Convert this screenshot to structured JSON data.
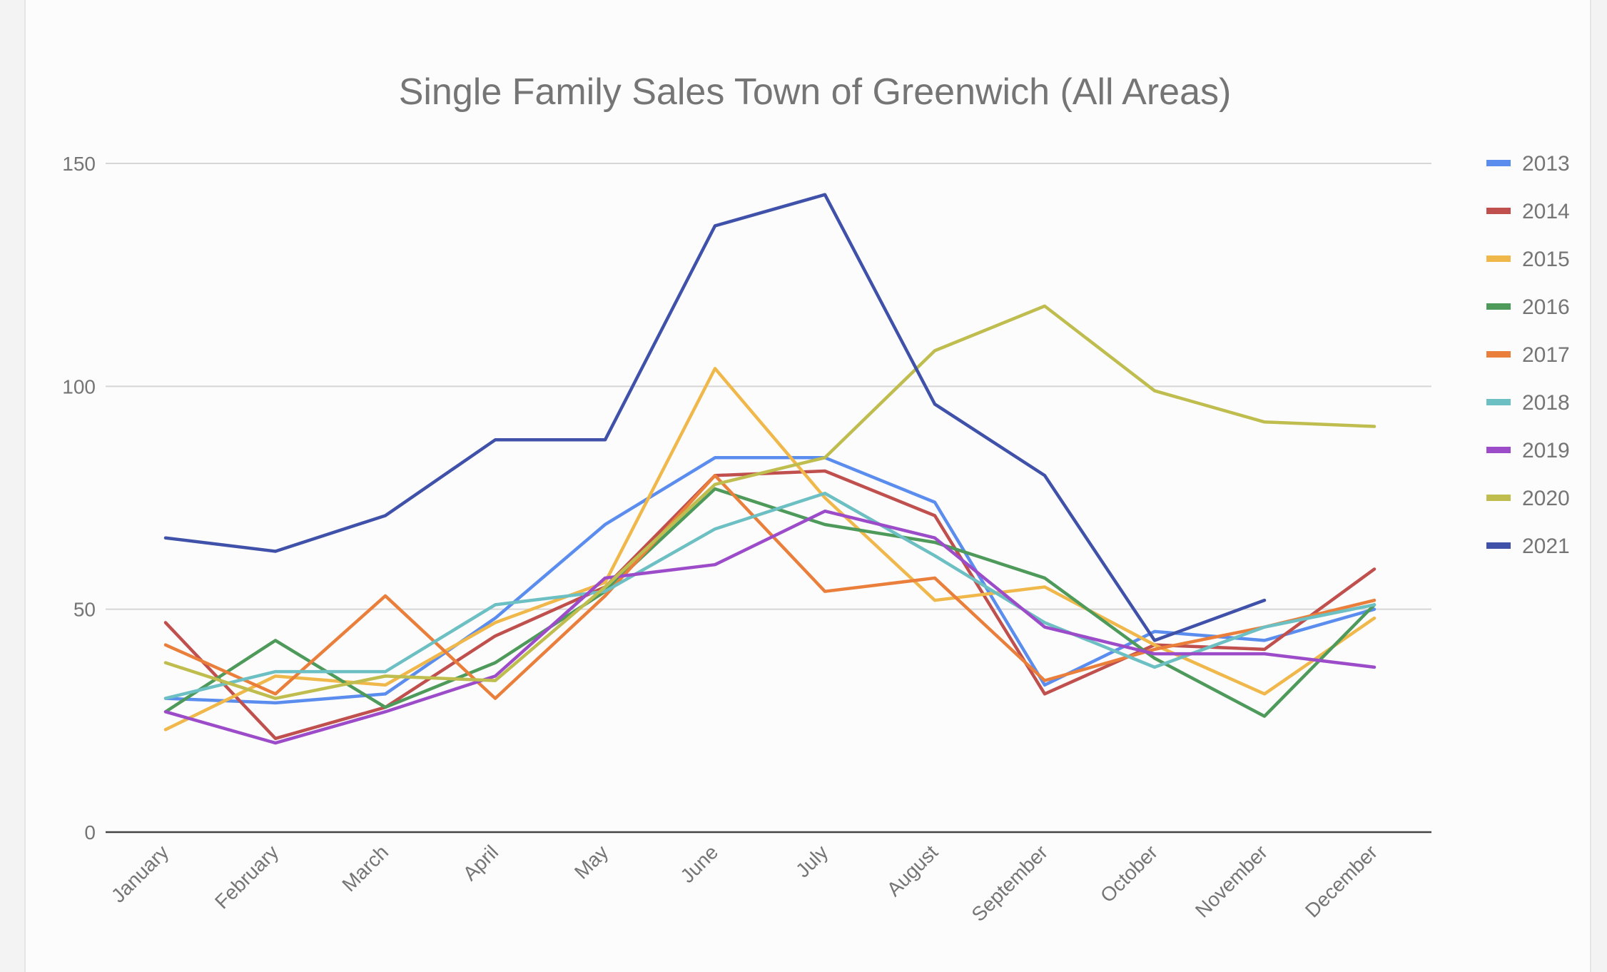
{
  "chart_data": {
    "type": "line",
    "title": "Single Family Sales Town of Greenwich (All Areas)",
    "xlabel": "",
    "ylabel": "",
    "ylim": [
      0,
      150
    ],
    "yticks": [
      "0",
      "50",
      "100",
      "150"
    ],
    "grid": true,
    "legend_position": "right",
    "categories": [
      "January",
      "February",
      "March",
      "April",
      "May",
      "June",
      "July",
      "August",
      "September",
      "October",
      "November",
      "December"
    ],
    "series": [
      {
        "name": "2013",
        "color": "#5b8def",
        "values": [
          30,
          29,
          31,
          48,
          69,
          84,
          84,
          74,
          33,
          45,
          43,
          50
        ]
      },
      {
        "name": "2014",
        "color": "#c0504d",
        "values": [
          47,
          21,
          28,
          44,
          55,
          80,
          81,
          71,
          31,
          42,
          41,
          59
        ]
      },
      {
        "name": "2015",
        "color": "#f0b84a",
        "values": [
          23,
          35,
          33,
          47,
          56,
          104,
          75,
          52,
          55,
          42,
          31,
          48
        ]
      },
      {
        "name": "2016",
        "color": "#4e9a5a",
        "values": [
          27,
          43,
          28,
          38,
          54,
          77,
          69,
          65,
          57,
          39,
          26,
          51
        ]
      },
      {
        "name": "2017",
        "color": "#ea7f3c",
        "values": [
          42,
          31,
          53,
          30,
          53,
          80,
          54,
          57,
          34,
          41,
          46,
          52
        ]
      },
      {
        "name": "2018",
        "color": "#6cbfc2",
        "values": [
          30,
          36,
          36,
          51,
          54,
          68,
          76,
          62,
          47,
          37,
          46,
          51
        ]
      },
      {
        "name": "2019",
        "color": "#9c4cc9",
        "values": [
          27,
          20,
          27,
          35,
          57,
          60,
          72,
          66,
          46,
          40,
          40,
          37
        ]
      },
      {
        "name": "2020",
        "color": "#bfbd4e",
        "values": [
          38,
          30,
          35,
          34,
          55,
          78,
          84,
          108,
          118,
          99,
          92,
          91
        ]
      },
      {
        "name": "2021",
        "color": "#3f51a8",
        "values": [
          66,
          63,
          71,
          88,
          88,
          136,
          143,
          96,
          80,
          43,
          52,
          null
        ]
      }
    ]
  }
}
